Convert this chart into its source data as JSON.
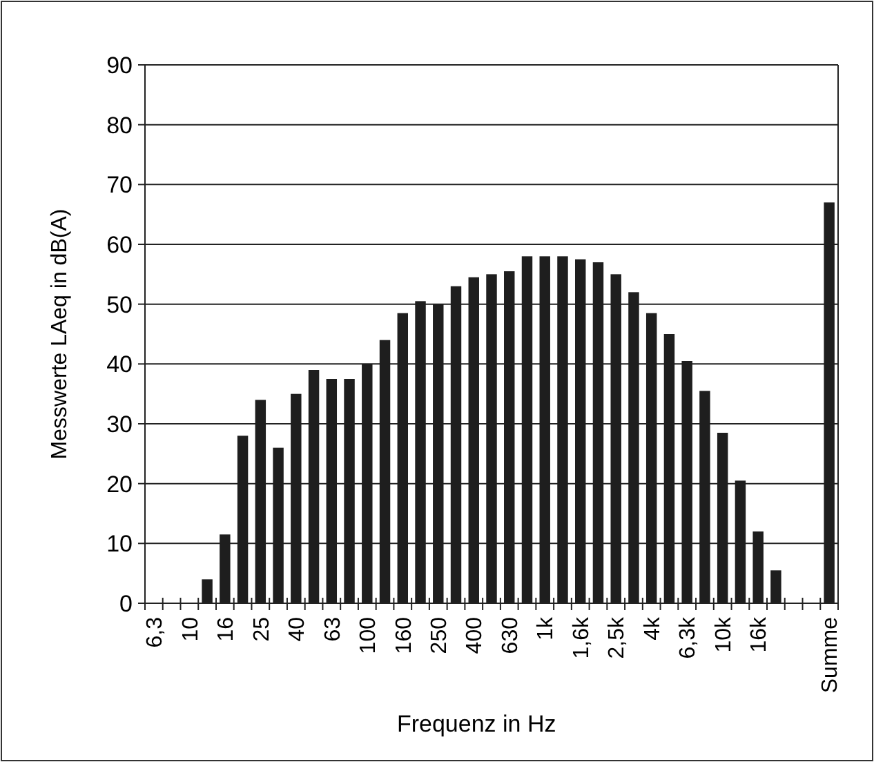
{
  "chart_data": {
    "type": "bar",
    "xlabel": "Frequenz in Hz",
    "ylabel": "Messwerte LAeq in dB(A)",
    "categories": [
      "6,3",
      null,
      "10",
      null,
      "16",
      null,
      "25",
      null,
      "40",
      null,
      "63",
      null,
      "100",
      null,
      "160",
      null,
      "250",
      null,
      "400",
      null,
      "630",
      null,
      "1k",
      null,
      "1,6k",
      null,
      "2,5k",
      null,
      "4k",
      null,
      "6,3k",
      null,
      "10k",
      null,
      "16k",
      null,
      null,
      null,
      "Summe"
    ],
    "values": [
      null,
      null,
      null,
      4,
      11.5,
      28,
      34,
      26,
      35,
      39,
      37.5,
      37.5,
      40,
      44,
      48.5,
      50.5,
      50,
      53,
      54.5,
      55,
      55.5,
      58,
      58,
      58,
      57.5,
      57,
      55,
      52,
      48.5,
      45,
      40.5,
      35.5,
      28.5,
      20.5,
      12,
      5.5,
      null,
      null,
      67
    ],
    "color": "#1e1e1e",
    "ylim": [
      0,
      90
    ],
    "yticks": [
      0,
      10,
      20,
      30,
      40,
      50,
      60,
      70,
      80,
      90
    ],
    "grid": "y"
  }
}
